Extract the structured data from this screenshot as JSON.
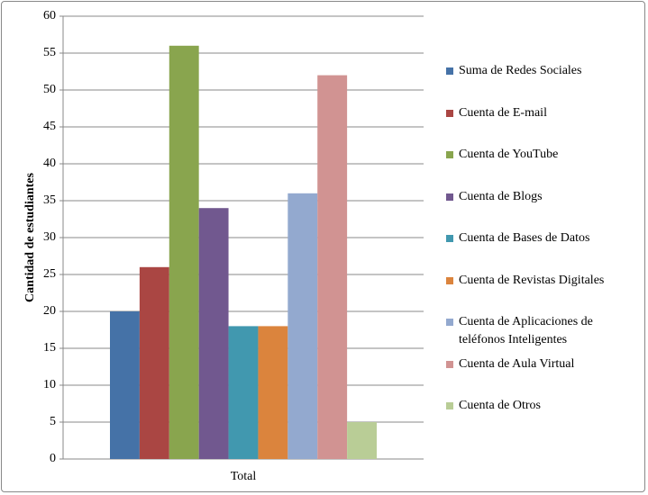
{
  "chart_data": {
    "type": "bar",
    "categories": [
      "Total"
    ],
    "y_label": "Cantidad  de estudiantes",
    "ylim": [
      0,
      60
    ],
    "yticks": [
      0,
      5,
      10,
      15,
      20,
      25,
      30,
      35,
      40,
      45,
      50,
      55,
      60
    ],
    "grid": true,
    "series": [
      {
        "name": "Suma de Redes Sociales",
        "color": "#4572a7",
        "values": [
          20
        ]
      },
      {
        "name": "Cuenta de E-mail",
        "color": "#aa4643",
        "values": [
          26
        ]
      },
      {
        "name": "Cuenta de YouTube",
        "color": "#89a54e",
        "values": [
          56
        ]
      },
      {
        "name": "Cuenta de Blogs",
        "color": "#71588f",
        "values": [
          34
        ]
      },
      {
        "name": "Cuenta de Bases de Datos",
        "color": "#4198af",
        "values": [
          18
        ]
      },
      {
        "name": "Cuenta de Revistas Digitales",
        "color": "#db843d",
        "values": [
          18
        ]
      },
      {
        "name": "Cuenta de Aplicaciones de teléfonos Inteligentes",
        "color": "#93a9cf",
        "values": [
          36
        ]
      },
      {
        "name": "Cuenta de Aula Virtual",
        "color": "#d19392",
        "values": [
          52
        ]
      },
      {
        "name": "Cuenta de Otros",
        "color": "#b9cd96",
        "values": [
          5
        ]
      }
    ]
  }
}
